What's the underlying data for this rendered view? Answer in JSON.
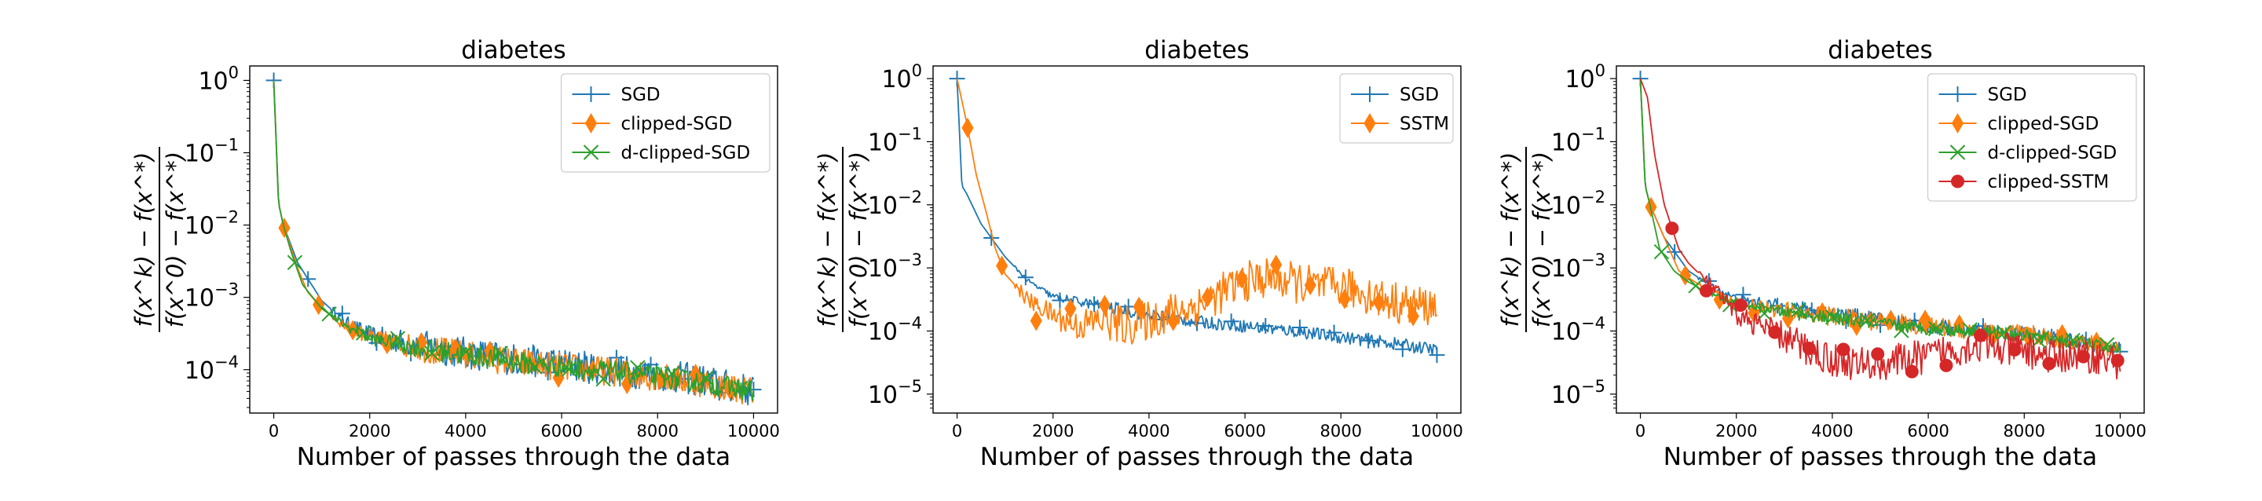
{
  "colors": {
    "SGD": "#1f77b4",
    "clipped-SGD": "#ff7f0e",
    "d-clipped-SGD": "#2ca02c",
    "SSTM": "#ff7f0e",
    "clipped-SSTM": "#d62728"
  },
  "ylabel": {
    "numerator": "f(x^k) − f(x^*)",
    "denominator": "f(x^0) − f(x^*)"
  },
  "chart_data": [
    {
      "type": "line",
      "title": "diabetes",
      "xlabel": "Number of passes through the data",
      "ylabel": "f(x^k) − f(x^*) / f(x^0) − f(x^*)",
      "xlim": [
        -500,
        10500
      ],
      "ylim_log10": [
        -4.6,
        0.2
      ],
      "yscale": "log",
      "xticks": [
        0,
        2000,
        4000,
        6000,
        8000,
        10000
      ],
      "xtick_labels": [
        "0",
        "2000",
        "4000",
        "6000",
        "8000",
        "10000"
      ],
      "yticks_exp": [
        0,
        -1,
        -2,
        -3,
        -4
      ],
      "legend_position": "upper-right",
      "series": [
        {
          "name": "SGD",
          "marker": "plus",
          "noise": 0.45,
          "x": [
            0,
            100,
            200,
            500,
            1000,
            1500,
            2000,
            3000,
            4000,
            5000,
            6000,
            7000,
            8000,
            9000,
            10000
          ],
          "y": [
            1.0,
            0.02,
            0.01,
            0.003,
            0.0009,
            0.00045,
            0.0003,
            0.00022,
            0.00017,
            0.00014,
            0.00012,
            0.0001,
            8.5e-05,
            7e-05,
            5e-05
          ]
        },
        {
          "name": "clipped-SGD",
          "marker": "diamond",
          "noise": 0.4,
          "x": [
            0,
            100,
            200,
            500,
            700,
            1000,
            1500,
            2000,
            3000,
            4000,
            5000,
            6000,
            7000,
            8000,
            9000,
            10000
          ],
          "y": [
            1.0,
            0.02,
            0.01,
            0.0025,
            0.0012,
            0.0007,
            0.0004,
            0.00028,
            0.0002,
            0.00016,
            0.00013,
            0.00011,
            9.5e-05,
            8e-05,
            6.5e-05,
            5e-05
          ]
        },
        {
          "name": "d-clipped-SGD",
          "marker": "x",
          "noise": 0.3,
          "x": [
            0,
            100,
            200,
            350,
            600,
            1000,
            1500,
            2000,
            3000,
            4000,
            5000,
            6000,
            7000,
            8000,
            9000,
            10000
          ],
          "y": [
            1.0,
            0.02,
            0.01,
            0.0045,
            0.0015,
            0.0007,
            0.0004,
            0.00027,
            0.0002,
            0.00016,
            0.00013,
            0.00011,
            9.5e-05,
            8e-05,
            6.5e-05,
            5e-05
          ]
        }
      ]
    },
    {
      "type": "line",
      "title": "diabetes",
      "xlabel": "Number of passes through the data",
      "ylabel": "f(x^k) − f(x^*) / f(x^0) − f(x^*)",
      "xlim": [
        -500,
        10500
      ],
      "ylim_log10": [
        -5.3,
        0.2
      ],
      "yscale": "log",
      "xticks": [
        0,
        2000,
        4000,
        6000,
        8000,
        10000
      ],
      "xtick_labels": [
        "0",
        "2000",
        "4000",
        "6000",
        "8000",
        "10000"
      ],
      "yticks_exp": [
        0,
        -1,
        -2,
        -3,
        -4,
        -5
      ],
      "legend_position": "upper-right",
      "series": [
        {
          "name": "SGD",
          "marker": "plus",
          "noise": 0.2,
          "x": [
            0,
            100,
            200,
            500,
            1000,
            1500,
            2000,
            3000,
            4000,
            5000,
            6000,
            7000,
            8000,
            9000,
            10000
          ],
          "y": [
            1.0,
            0.02,
            0.015,
            0.005,
            0.0015,
            0.0006,
            0.00035,
            0.00025,
            0.00018,
            0.00014,
            0.00012,
            0.0001,
            8e-05,
            6.5e-05,
            5e-05
          ]
        },
        {
          "name": "SSTM",
          "marker": "diamond",
          "noise": 0.65,
          "x": [
            0,
            200,
            400,
            600,
            800,
            1000,
            1500,
            2000,
            2500,
            3000,
            3500,
            4000,
            4500,
            5000,
            5500,
            6000,
            6500,
            7000,
            7500,
            8000,
            8500,
            9000,
            9500,
            10000
          ],
          "y": [
            1.0,
            0.2,
            0.03,
            0.008,
            0.002,
            0.0008,
            0.0003,
            0.00018,
            0.00012,
            0.00015,
            0.00012,
            0.00015,
            0.0002,
            0.00025,
            0.0004,
            0.0006,
            0.0007,
            0.0006,
            0.0005,
            0.0005,
            0.0004,
            0.0003,
            0.00025,
            0.00025
          ]
        }
      ]
    },
    {
      "type": "line",
      "title": "diabetes",
      "xlabel": "Number of passes through the data",
      "ylabel": "f(x^k) − f(x^*) / f(x^0) − f(x^*)",
      "xlim": [
        -500,
        10500
      ],
      "ylim_log10": [
        -5.3,
        0.2
      ],
      "yscale": "log",
      "xticks": [
        0,
        2000,
        4000,
        6000,
        8000,
        10000
      ],
      "xtick_labels": [
        "0",
        "2000",
        "4000",
        "6000",
        "8000",
        "10000"
      ],
      "yticks_exp": [
        0,
        -1,
        -2,
        -3,
        -4,
        -5
      ],
      "legend_position": "upper-right",
      "series": [
        {
          "name": "SGD",
          "marker": "plus",
          "noise": 0.25,
          "x": [
            0,
            100,
            200,
            500,
            1000,
            1500,
            2000,
            3000,
            4000,
            5000,
            6000,
            7000,
            8000,
            9000,
            10000
          ],
          "y": [
            1.0,
            0.02,
            0.01,
            0.003,
            0.0009,
            0.0005,
            0.00032,
            0.00024,
            0.00019,
            0.00015,
            0.00012,
            0.0001,
            9e-05,
            7e-05,
            5e-05
          ]
        },
        {
          "name": "clipped-SGD",
          "marker": "diamond",
          "noise": 0.3,
          "x": [
            0,
            100,
            200,
            500,
            800,
            1000,
            1500,
            2000,
            3000,
            4000,
            5000,
            6000,
            7000,
            8000,
            9000,
            10000
          ],
          "y": [
            1.0,
            0.02,
            0.01,
            0.003,
            0.0009,
            0.0007,
            0.0004,
            0.00028,
            0.00021,
            0.00017,
            0.00014,
            0.00012,
            0.0001,
            9e-05,
            7e-05,
            5e-05
          ]
        },
        {
          "name": "d-clipped-SGD",
          "marker": "x",
          "noise": 0.2,
          "x": [
            0,
            100,
            200,
            400,
            700,
            1000,
            1500,
            2000,
            3000,
            4000,
            5000,
            6000,
            7000,
            8000,
            9000,
            10000
          ],
          "y": [
            1.0,
            0.02,
            0.01,
            0.002,
            0.0009,
            0.0006,
            0.00038,
            0.00027,
            0.0002,
            0.00016,
            0.00013,
            0.00011,
            0.0001,
            8.5e-05,
            7e-05,
            5e-05
          ]
        },
        {
          "name": "clipped-SSTM",
          "marker": "circle",
          "noise": 0.55,
          "x": [
            0,
            150,
            300,
            500,
            800,
            1000,
            1500,
            2000,
            2500,
            3000,
            3500,
            4000,
            4500,
            5000,
            5500,
            6000,
            6500,
            7000,
            7500,
            8000,
            8500,
            9000,
            9500,
            10000
          ],
          "y": [
            1.0,
            0.5,
            0.06,
            0.01,
            0.002,
            0.0012,
            0.0005,
            0.00018,
            0.00012,
            8e-05,
            5e-05,
            3.5e-05,
            3e-05,
            3e-05,
            3.5e-05,
            4e-05,
            5e-05,
            6e-05,
            5e-05,
            5e-05,
            4e-05,
            4e-05,
            4e-05,
            3e-05
          ]
        }
      ]
    }
  ]
}
